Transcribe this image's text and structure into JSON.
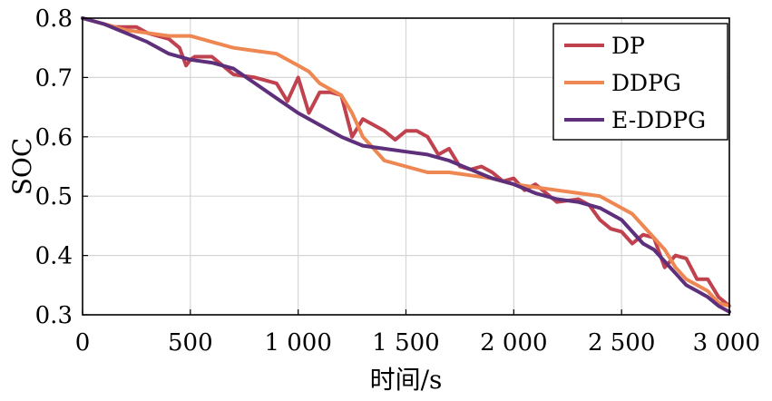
{
  "chart_data": {
    "type": "line",
    "title": "",
    "xlabel": "时间/s",
    "ylabel": "SOC",
    "xlim": [
      0,
      3000
    ],
    "ylim": [
      0.3,
      0.8
    ],
    "x_ticks": [
      0,
      500,
      1000,
      1500,
      2000,
      2500,
      3000
    ],
    "x_tick_labels": [
      "0",
      "500",
      "1 000",
      "1 500",
      "2 000",
      "2 500",
      "3 000"
    ],
    "y_ticks": [
      0.3,
      0.4,
      0.5,
      0.6,
      0.7,
      0.8
    ],
    "y_tick_labels": [
      "0.3",
      "0.4",
      "0.5",
      "0.6",
      "0.7",
      "0.8"
    ],
    "grid": true,
    "legend_position": "top-right",
    "series": [
      {
        "name": "DP",
        "color": "#c0424f",
        "x": [
          0,
          100,
          150,
          250,
          300,
          400,
          450,
          480,
          500,
          520,
          600,
          650,
          700,
          800,
          900,
          950,
          1000,
          1050,
          1100,
          1150,
          1200,
          1250,
          1300,
          1400,
          1450,
          1500,
          1550,
          1600,
          1650,
          1700,
          1750,
          1800,
          1850,
          1900,
          1950,
          2000,
          2050,
          2100,
          2200,
          2300,
          2350,
          2400,
          2450,
          2500,
          2550,
          2600,
          2650,
          2700,
          2750,
          2800,
          2850,
          2900,
          2950,
          3000
        ],
        "y": [
          0.8,
          0.79,
          0.785,
          0.785,
          0.775,
          0.765,
          0.75,
          0.72,
          0.73,
          0.735,
          0.735,
          0.72,
          0.705,
          0.7,
          0.69,
          0.66,
          0.7,
          0.64,
          0.675,
          0.675,
          0.67,
          0.6,
          0.63,
          0.61,
          0.595,
          0.61,
          0.61,
          0.6,
          0.57,
          0.58,
          0.55,
          0.545,
          0.55,
          0.54,
          0.525,
          0.53,
          0.51,
          0.52,
          0.49,
          0.495,
          0.485,
          0.46,
          0.445,
          0.44,
          0.42,
          0.435,
          0.43,
          0.38,
          0.4,
          0.395,
          0.36,
          0.36,
          0.33,
          0.315
        ]
      },
      {
        "name": "DDPG",
        "color": "#ee8751",
        "x": [
          0,
          100,
          200,
          300,
          400,
          500,
          600,
          700,
          800,
          900,
          950,
          1000,
          1050,
          1100,
          1150,
          1200,
          1250,
          1300,
          1350,
          1400,
          1500,
          1600,
          1700,
          1800,
          1900,
          2000,
          2100,
          2200,
          2300,
          2400,
          2500,
          2550,
          2600,
          2650,
          2700,
          2750,
          2800,
          2850,
          2900,
          2950,
          3000
        ],
        "y": [
          0.8,
          0.79,
          0.78,
          0.775,
          0.77,
          0.77,
          0.76,
          0.75,
          0.745,
          0.74,
          0.73,
          0.72,
          0.71,
          0.69,
          0.68,
          0.67,
          0.64,
          0.6,
          0.58,
          0.56,
          0.55,
          0.54,
          0.54,
          0.535,
          0.53,
          0.52,
          0.515,
          0.51,
          0.505,
          0.5,
          0.48,
          0.47,
          0.45,
          0.43,
          0.41,
          0.38,
          0.36,
          0.35,
          0.34,
          0.32,
          0.315
        ]
      },
      {
        "name": "E-DDPG",
        "color": "#5e2f7a",
        "x": [
          0,
          100,
          200,
          300,
          400,
          500,
          600,
          700,
          800,
          900,
          1000,
          1100,
          1200,
          1300,
          1400,
          1500,
          1600,
          1700,
          1800,
          1900,
          2000,
          2100,
          2200,
          2300,
          2400,
          2500,
          2550,
          2600,
          2650,
          2700,
          2750,
          2800,
          2850,
          2900,
          2950,
          3000
        ],
        "y": [
          0.8,
          0.79,
          0.775,
          0.76,
          0.74,
          0.73,
          0.725,
          0.715,
          0.69,
          0.665,
          0.64,
          0.62,
          0.6,
          0.585,
          0.58,
          0.575,
          0.57,
          0.56,
          0.545,
          0.53,
          0.52,
          0.505,
          0.495,
          0.49,
          0.48,
          0.46,
          0.44,
          0.42,
          0.41,
          0.39,
          0.37,
          0.35,
          0.34,
          0.33,
          0.315,
          0.305
        ]
      }
    ]
  }
}
